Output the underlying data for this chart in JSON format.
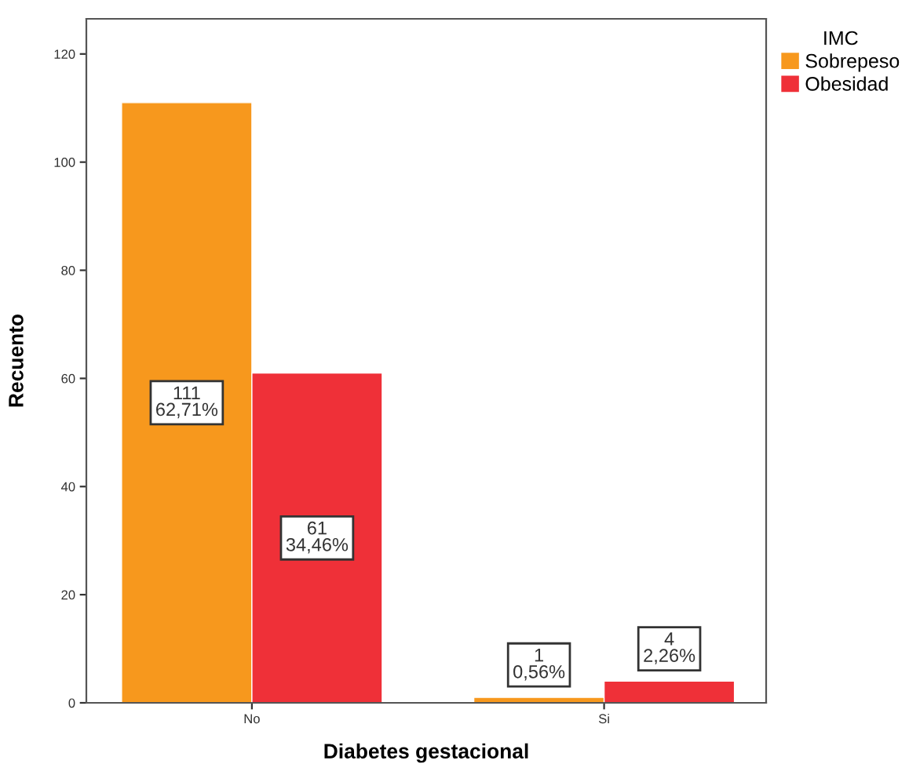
{
  "chart_data": {
    "type": "bar",
    "xlabel": "Diabetes gestacional",
    "ylabel": "Recuento",
    "legend_title": "IMC",
    "categories": [
      "No",
      "Si"
    ],
    "series": [
      {
        "name": "Sobrepeso",
        "color": "#f7981d",
        "values": [
          111,
          1
        ],
        "value_labels": [
          "111\n62,71%",
          "1\n0,56%"
        ]
      },
      {
        "name": "Obesidad",
        "color": "#ef3038",
        "values": [
          61,
          4
        ],
        "value_labels": [
          "61\n34,46%",
          "4\n2,26%"
        ]
      }
    ],
    "ylim": [
      0,
      126.5
    ],
    "yticks": [
      0,
      20,
      40,
      60,
      80,
      100,
      120
    ],
    "grid": false,
    "legend": "right"
  }
}
